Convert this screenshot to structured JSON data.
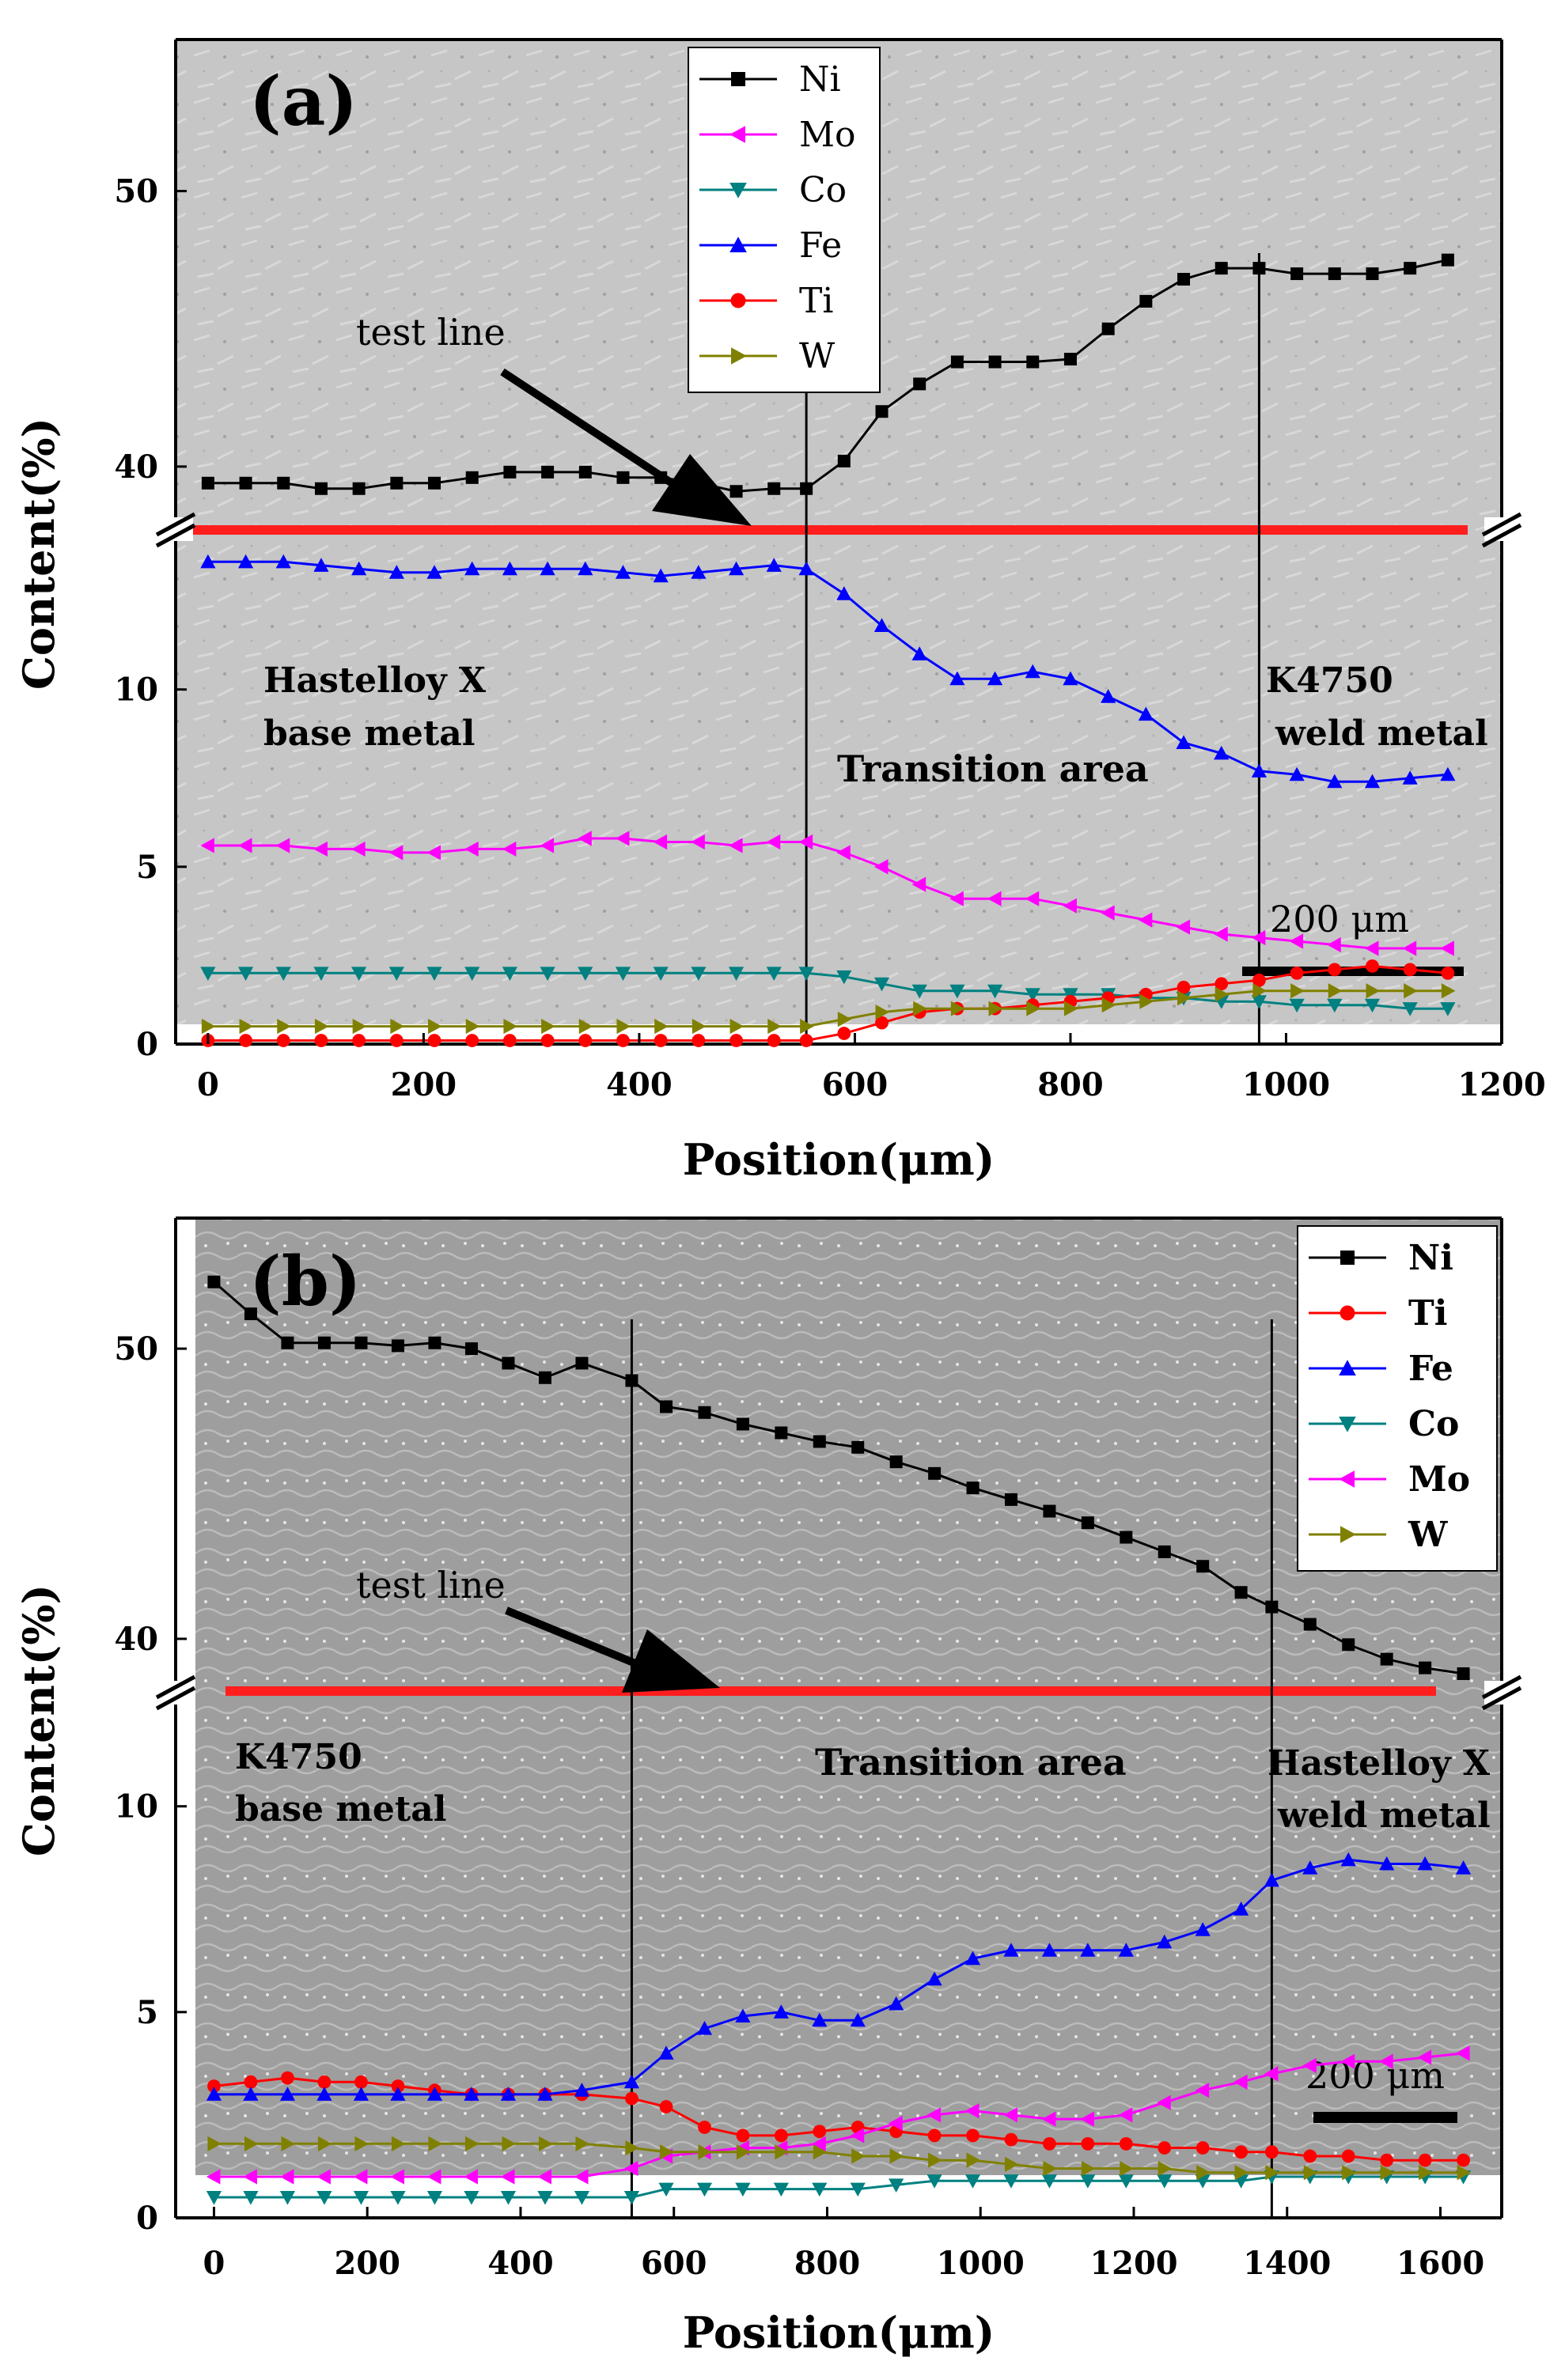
{
  "chart_data": [
    {
      "type": "line",
      "panel_label": "(a)",
      "xlabel": "Position(μm)",
      "ylabel": "Content(%)",
      "xlim": [
        -30,
        1200
      ],
      "xticks": [
        "0",
        "200",
        "400",
        "600",
        "800",
        "1000",
        "1200"
      ],
      "ylim_lower": [
        0,
        14.5
      ],
      "yticks_lower": [
        "0",
        "5",
        "10"
      ],
      "ylim_upper": [
        37.7,
        55.5
      ],
      "yticks_upper": [
        "40",
        "50"
      ],
      "break_value": 37.7,
      "boundaries_x": [
        555,
        975
      ],
      "annotations": {
        "test_line": "test line",
        "left_region": [
          "Hastelloy X",
          "base metal"
        ],
        "middle_region": "Transition area",
        "right_region": [
          "K4750",
          "weld metal"
        ],
        "scale_bar": "200 μm"
      },
      "x": [
        0,
        35,
        70,
        105,
        140,
        175,
        210,
        245,
        280,
        315,
        350,
        385,
        420,
        455,
        490,
        525,
        555,
        590,
        625,
        660,
        695,
        730,
        765,
        800,
        835,
        870,
        905,
        940,
        975,
        1010,
        1045,
        1080,
        1115,
        1150
      ],
      "series": [
        {
          "name": "Ni",
          "color": "#000000",
          "marker": "square",
          "values": [
            39.4,
            39.4,
            39.4,
            39.2,
            39.2,
            39.4,
            39.4,
            39.6,
            39.8,
            39.8,
            39.8,
            39.6,
            39.6,
            39.4,
            39.1,
            39.2,
            39.2,
            40.2,
            42,
            43,
            43.8,
            43.8,
            43.8,
            43.9,
            45,
            46,
            46.8,
            47.2,
            47.2,
            47,
            47,
            47,
            47.2,
            47.5
          ]
        },
        {
          "name": "Mo",
          "color": "#ff00ff",
          "marker": "triangle-left",
          "values": [
            5.6,
            5.6,
            5.6,
            5.5,
            5.5,
            5.4,
            5.4,
            5.5,
            5.5,
            5.6,
            5.8,
            5.8,
            5.7,
            5.7,
            5.6,
            5.7,
            5.7,
            5.4,
            5,
            4.5,
            4.1,
            4.1,
            4.1,
            3.9,
            3.7,
            3.5,
            3.3,
            3.1,
            3,
            2.9,
            2.8,
            2.7,
            2.7,
            2.7
          ]
        },
        {
          "name": "Co",
          "color": "#008080",
          "marker": "triangle-down",
          "values": [
            2,
            2,
            2,
            2,
            2,
            2,
            2,
            2,
            2,
            2,
            2,
            2,
            2,
            2,
            2,
            2,
            2,
            1.9,
            1.7,
            1.5,
            1.5,
            1.5,
            1.4,
            1.4,
            1.4,
            1.3,
            1.3,
            1.2,
            1.2,
            1.1,
            1.1,
            1.1,
            1,
            1
          ]
        },
        {
          "name": "Fe",
          "color": "#0000ff",
          "marker": "triangle-up",
          "values": [
            13.6,
            13.6,
            13.6,
            13.5,
            13.4,
            13.3,
            13.3,
            13.4,
            13.4,
            13.4,
            13.4,
            13.3,
            13.2,
            13.3,
            13.4,
            13.5,
            13.4,
            12.7,
            11.8,
            11,
            10.3,
            10.3,
            10.5,
            10.3,
            9.8,
            9.3,
            8.5,
            8.2,
            7.7,
            7.6,
            7.4,
            7.4,
            7.5,
            7.6
          ]
        },
        {
          "name": "Ti",
          "color": "#ff0000",
          "marker": "circle",
          "values": [
            0.1,
            0.1,
            0.1,
            0.1,
            0.1,
            0.1,
            0.1,
            0.1,
            0.1,
            0.1,
            0.1,
            0.1,
            0.1,
            0.1,
            0.1,
            0.1,
            0.1,
            0.3,
            0.6,
            0.9,
            1,
            1,
            1.1,
            1.2,
            1.3,
            1.4,
            1.6,
            1.7,
            1.8,
            2,
            2.1,
            2.2,
            2.1,
            2
          ]
        },
        {
          "name": "W",
          "color": "#808000",
          "marker": "triangle-right",
          "values": [
            0.5,
            0.5,
            0.5,
            0.5,
            0.5,
            0.5,
            0.5,
            0.5,
            0.5,
            0.5,
            0.5,
            0.5,
            0.5,
            0.5,
            0.5,
            0.5,
            0.5,
            0.7,
            0.9,
            1,
            1,
            1,
            1,
            1,
            1.1,
            1.2,
            1.3,
            1.4,
            1.5,
            1.5,
            1.5,
            1.5,
            1.5,
            1.5
          ]
        }
      ]
    },
    {
      "type": "line",
      "panel_label": "(b)",
      "xlabel": "Position(μm)",
      "ylabel": "Content(%)",
      "xlim": [
        -50,
        1680
      ],
      "xticks": [
        "0",
        "200",
        "400",
        "600",
        "800",
        "1000",
        "1200",
        "1400",
        "1600"
      ],
      "ylim_lower": [
        0,
        12.8
      ],
      "yticks_lower": [
        "0",
        "5",
        "10"
      ],
      "ylim_upper": [
        38.2,
        54.5
      ],
      "yticks_upper": [
        "40",
        "50"
      ],
      "break_value": 38.2,
      "boundaries_x": [
        545,
        1380
      ],
      "annotations": {
        "test_line": "test line",
        "left_region": [
          "K4750",
          "base metal"
        ],
        "middle_region": "Transition area",
        "right_region": [
          "Hastelloy X",
          "weld metal"
        ],
        "scale_bar": "200 μm"
      },
      "x": [
        0,
        48,
        96,
        144,
        192,
        240,
        288,
        336,
        384,
        432,
        480,
        545,
        590,
        640,
        690,
        740,
        790,
        840,
        890,
        940,
        990,
        1040,
        1090,
        1140,
        1190,
        1240,
        1290,
        1340,
        1380,
        1430,
        1480,
        1530,
        1580,
        1630
      ],
      "series": [
        {
          "name": "Ni",
          "color": "#000000",
          "marker": "square",
          "values": [
            52.3,
            51.2,
            50.2,
            50.2,
            50.2,
            50.1,
            50.2,
            50,
            49.5,
            49,
            49.5,
            48.9,
            48,
            47.8,
            47.4,
            47.1,
            46.8,
            46.6,
            46.1,
            45.7,
            45.2,
            44.8,
            44.4,
            44,
            43.5,
            43,
            42.5,
            41.6,
            41.1,
            40.5,
            39.8,
            39.3,
            39,
            38.8
          ]
        },
        {
          "name": "Ti",
          "color": "#ff0000",
          "marker": "circle",
          "values": [
            3.2,
            3.3,
            3.4,
            3.3,
            3.3,
            3.2,
            3.1,
            3,
            3,
            3,
            3,
            2.9,
            2.7,
            2.2,
            2,
            2,
            2.1,
            2.2,
            2.1,
            2,
            2,
            1.9,
            1.8,
            1.8,
            1.8,
            1.7,
            1.7,
            1.6,
            1.6,
            1.5,
            1.5,
            1.4,
            1.4,
            1.4
          ]
        },
        {
          "name": "Fe",
          "color": "#0000ff",
          "marker": "triangle-up",
          "values": [
            3,
            3,
            3,
            3,
            3,
            3,
            3,
            3,
            3,
            3,
            3.1,
            3.3,
            4,
            4.6,
            4.9,
            5,
            4.8,
            4.8,
            5.2,
            5.8,
            6.3,
            6.5,
            6.5,
            6.5,
            6.5,
            6.7,
            7,
            7.5,
            8.2,
            8.5,
            8.7,
            8.6,
            8.6,
            8.5
          ]
        },
        {
          "name": "Co",
          "color": "#008080",
          "marker": "triangle-down",
          "values": [
            0.5,
            0.5,
            0.5,
            0.5,
            0.5,
            0.5,
            0.5,
            0.5,
            0.5,
            0.5,
            0.5,
            0.5,
            0.7,
            0.7,
            0.7,
            0.7,
            0.7,
            0.7,
            0.8,
            0.9,
            0.9,
            0.9,
            0.9,
            0.9,
            0.9,
            0.9,
            0.9,
            0.9,
            1,
            1,
            1,
            1,
            1,
            1
          ]
        },
        {
          "name": "Mo",
          "color": "#ff00ff",
          "marker": "triangle-left",
          "values": [
            1,
            1,
            1,
            1,
            1,
            1,
            1,
            1,
            1,
            1,
            1,
            1.2,
            1.5,
            1.6,
            1.7,
            1.7,
            1.8,
            2,
            2.3,
            2.5,
            2.6,
            2.5,
            2.4,
            2.4,
            2.5,
            2.8,
            3.1,
            3.3,
            3.5,
            3.7,
            3.8,
            3.8,
            3.9,
            4
          ]
        },
        {
          "name": "W",
          "color": "#808000",
          "marker": "triangle-right",
          "values": [
            1.8,
            1.8,
            1.8,
            1.8,
            1.8,
            1.8,
            1.8,
            1.8,
            1.8,
            1.8,
            1.8,
            1.7,
            1.6,
            1.6,
            1.6,
            1.6,
            1.6,
            1.5,
            1.5,
            1.4,
            1.4,
            1.3,
            1.2,
            1.2,
            1.2,
            1.2,
            1.1,
            1.1,
            1.1,
            1.1,
            1.1,
            1.1,
            1.1,
            1.1
          ]
        }
      ]
    }
  ]
}
